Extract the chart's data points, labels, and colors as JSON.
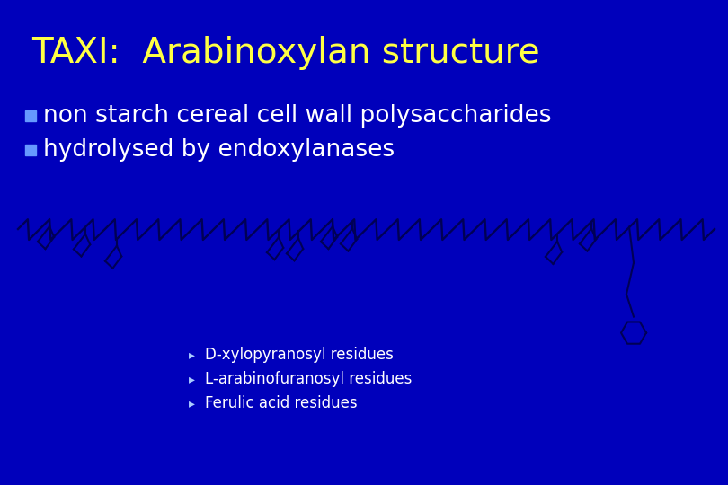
{
  "title": "TAXI:  Arabinoxylan structure",
  "title_color": "#FFFF44",
  "title_fontsize": 28,
  "bullet1": "non starch cereal cell wall polysaccharides",
  "bullet2": "hydrolysed by endoxylanases",
  "bullet_color": "#FFFFFF",
  "bullet_fontsize": 19,
  "bullet_marker_color": "#6699FF",
  "legend_items": [
    "D-xylopyranosyl residues",
    "L-arabinofuranosyl residues",
    "Ferulic acid residues"
  ],
  "legend_color": "#FFFFFF",
  "legend_fontsize": 12,
  "bg_color": "#0000BB",
  "chain_color": "#000055",
  "chain_lw": 1.5
}
